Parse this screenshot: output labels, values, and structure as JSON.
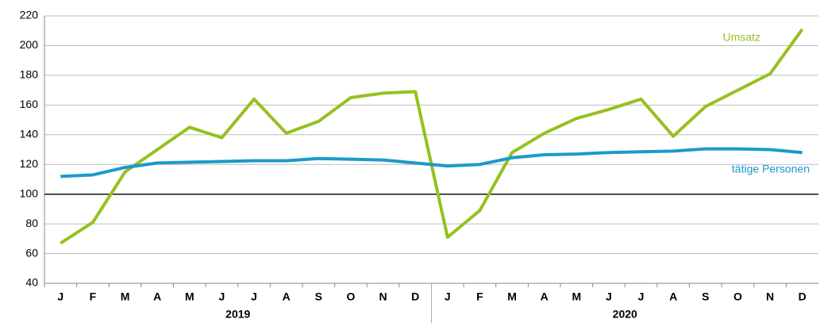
{
  "chart_data": {
    "type": "line",
    "categories": [
      "J",
      "F",
      "M",
      "A",
      "M",
      "J",
      "J",
      "A",
      "S",
      "O",
      "N",
      "D",
      "J",
      "F",
      "M",
      "A",
      "M",
      "J",
      "J",
      "A",
      "S",
      "O",
      "N",
      "D"
    ],
    "groups": [
      "2019",
      "2020"
    ],
    "series": [
      {
        "name": "Umsatz",
        "color": "#95c11f",
        "values": [
          67,
          81,
          115,
          130,
          145,
          138,
          164,
          141,
          149,
          165,
          168,
          169,
          71,
          89,
          128,
          141,
          151,
          157,
          164,
          139,
          159,
          170,
          181,
          211
        ]
      },
      {
        "name": "tätige Personen",
        "color": "#1a9bc9",
        "values": [
          112,
          113,
          118,
          121,
          121.5,
          122,
          122.5,
          122.5,
          124,
          123.5,
          123,
          121,
          119,
          120,
          124.5,
          126.5,
          127,
          128,
          128.5,
          129,
          130.5,
          130.5,
          130,
          128
        ]
      }
    ],
    "ylim": [
      40,
      220
    ],
    "yticks": [
      40,
      60,
      80,
      100,
      120,
      140,
      160,
      180,
      200,
      220
    ],
    "grid": true,
    "reference_line": 100
  }
}
